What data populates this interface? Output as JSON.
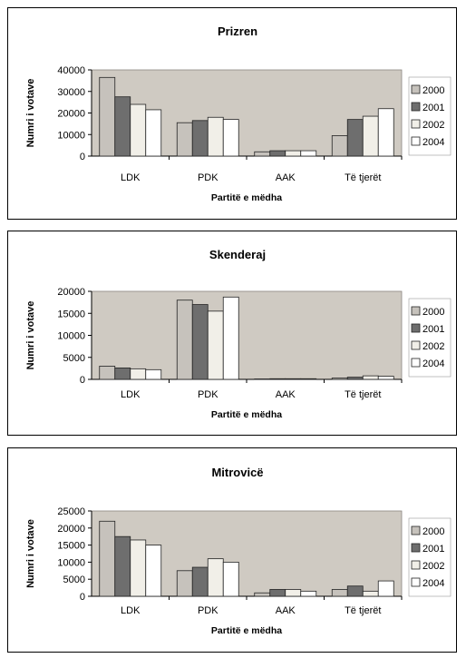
{
  "chart_data": [
    {
      "type": "bar",
      "title": "Prizren",
      "xlabel": "Partitë e mëdha",
      "ylabel": "Numri i votave",
      "categories": [
        "LDK",
        "PDK",
        "AAK",
        "Të tjerët"
      ],
      "ylim": [
        0,
        40000
      ],
      "yticks": [
        "0",
        "10000",
        "20000",
        "30000",
        "40000"
      ],
      "series": [
        {
          "name": "2000",
          "values": [
            36500,
            15500,
            2000,
            9500
          ]
        },
        {
          "name": "2001",
          "values": [
            27500,
            16500,
            2500,
            17000
          ]
        },
        {
          "name": "2002",
          "values": [
            24000,
            18000,
            2500,
            18500
          ]
        },
        {
          "name": "2004",
          "values": [
            21500,
            17000,
            2500,
            22000
          ]
        }
      ],
      "legend_position": "right",
      "grid": false
    },
    {
      "type": "bar",
      "title": "Skenderaj",
      "xlabel": "Partitë e mëdha",
      "ylabel": "Numri i votave",
      "categories": [
        "LDK",
        "PDK",
        "AAK",
        "Të tjerët"
      ],
      "ylim": [
        0,
        20000
      ],
      "yticks": [
        "0",
        "5000",
        "10000",
        "15000",
        "20000"
      ],
      "series": [
        {
          "name": "2000",
          "values": [
            3000,
            18000,
            100,
            300
          ]
        },
        {
          "name": "2001",
          "values": [
            2600,
            17000,
            150,
            500
          ]
        },
        {
          "name": "2002",
          "values": [
            2400,
            15500,
            150,
            800
          ]
        },
        {
          "name": "2004",
          "values": [
            2200,
            18700,
            150,
            700
          ]
        }
      ],
      "legend_position": "right",
      "grid": false
    },
    {
      "type": "bar",
      "title": "Mitrovicë",
      "xlabel": "Partitë e mëdha",
      "ylabel": "Numri i votave",
      "categories": [
        "LDK",
        "PDK",
        "AAK",
        "Të tjerët"
      ],
      "ylim": [
        0,
        25000
      ],
      "yticks": [
        "0",
        "5000",
        "10000",
        "15000",
        "20000",
        "25000"
      ],
      "series": [
        {
          "name": "2000",
          "values": [
            22000,
            7500,
            1000,
            2000
          ]
        },
        {
          "name": "2001",
          "values": [
            17500,
            8500,
            2000,
            3000
          ]
        },
        {
          "name": "2002",
          "values": [
            16500,
            11000,
            2000,
            1500
          ]
        },
        {
          "name": "2004",
          "values": [
            15000,
            10000,
            1500,
            4500
          ]
        }
      ],
      "legend_position": "right",
      "grid": false
    }
  ],
  "colors": {
    "plot_bg": "#cfcac2",
    "series": [
      "#c6c2bc",
      "#6e6e6e",
      "#f1efe8",
      "#ffffff"
    ],
    "bar_stroke": "#222222",
    "text": "#000000"
  }
}
